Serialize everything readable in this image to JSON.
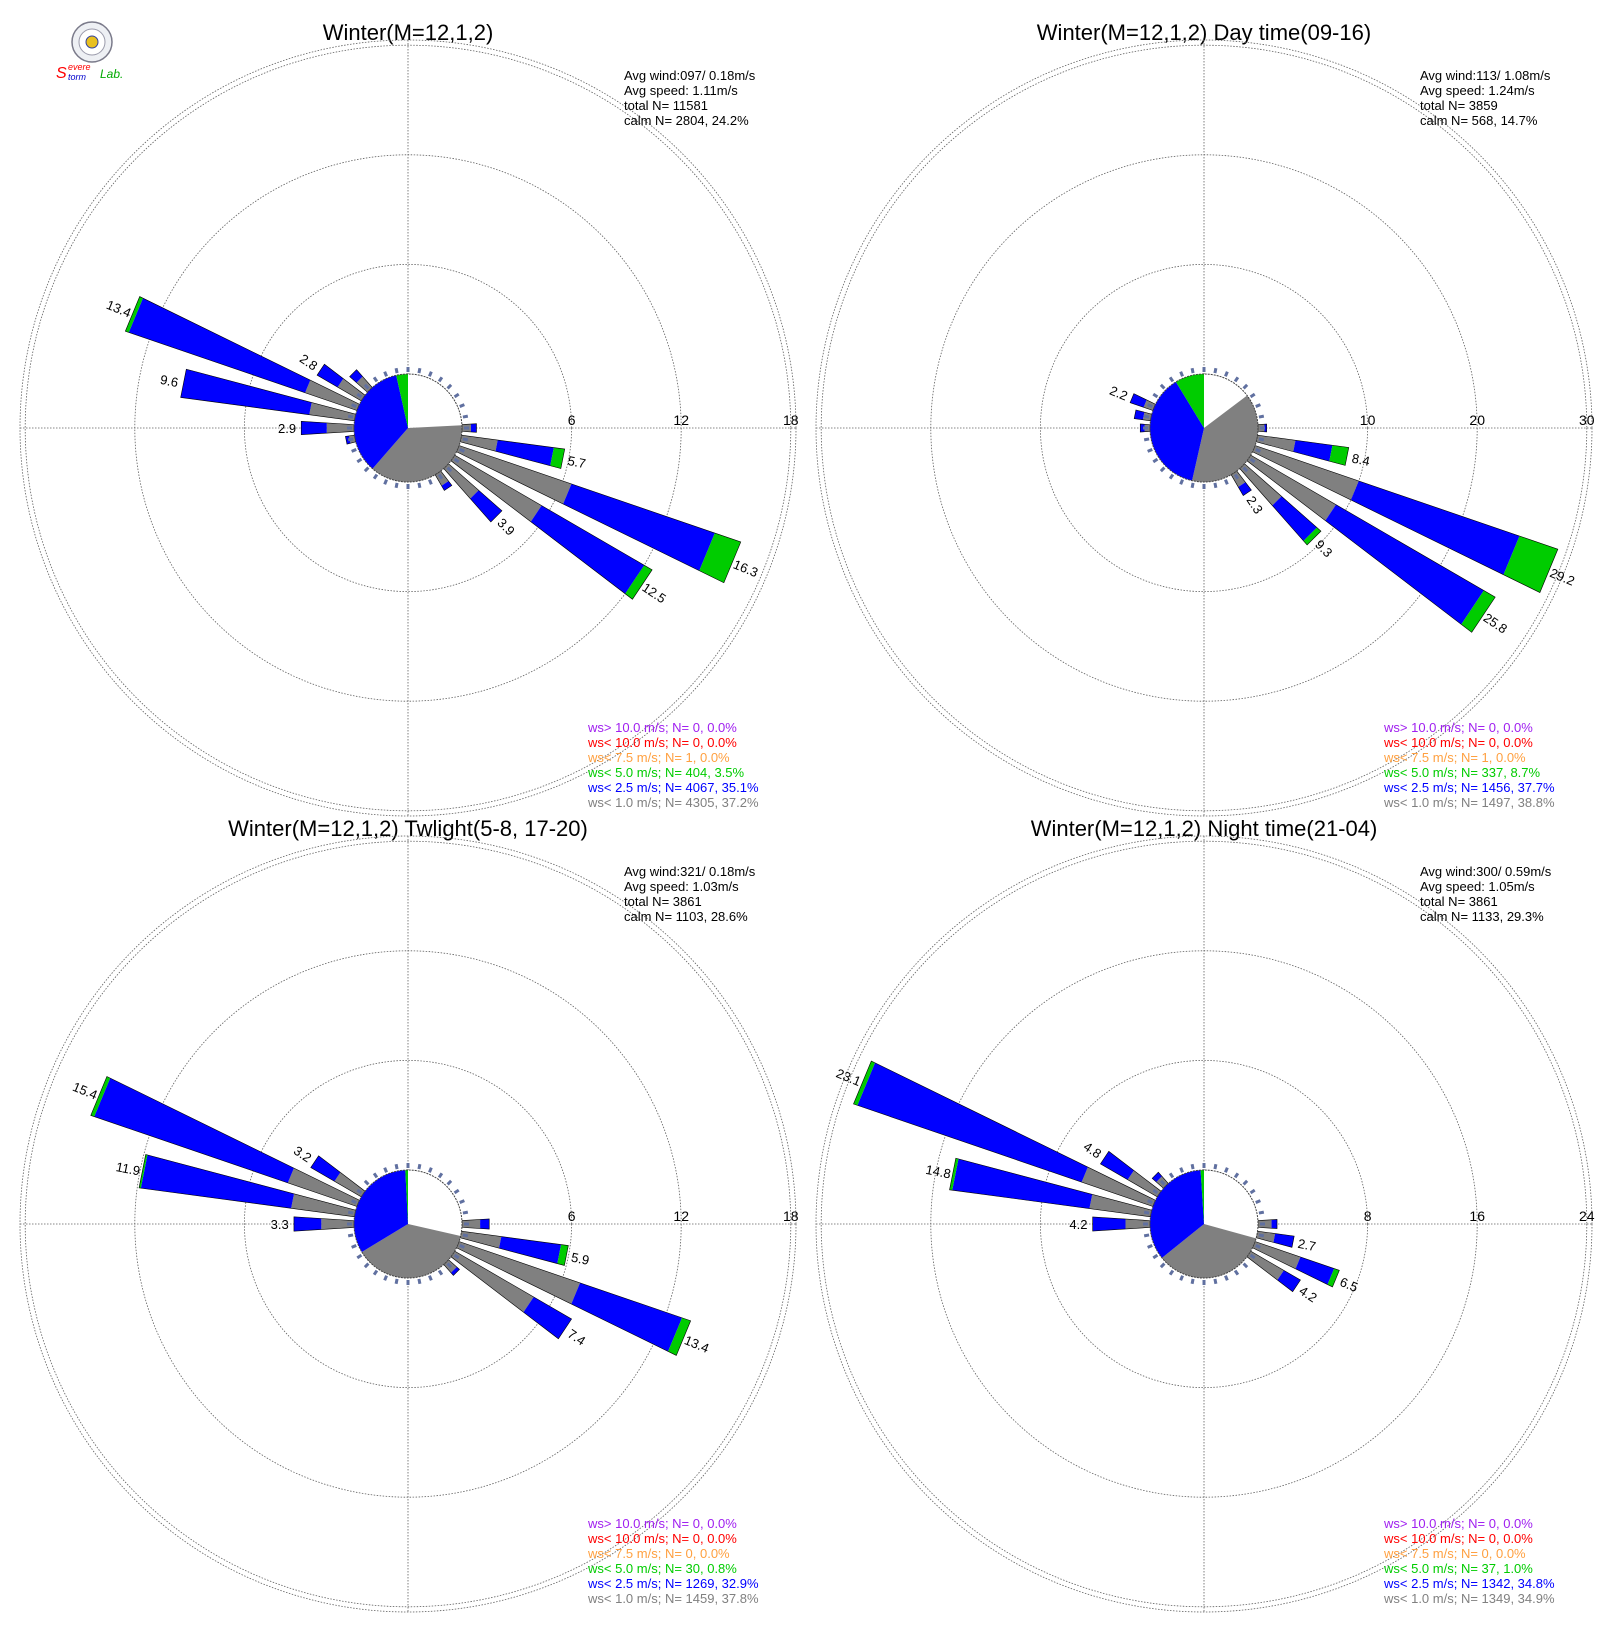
{
  "logo": {
    "text_s": "S",
    "text_evere": "evere",
    "text_torm": "torm",
    "text_lab": "Lab."
  },
  "colors": {
    "ws_gt10": "#a020f0",
    "ws_lt10": "#ff0000",
    "ws_lt75": "#ffa040",
    "ws_lt5": "#00cc00",
    "ws_lt25": "#0000ff",
    "ws_lt1": "#808080",
    "grid": "#606060",
    "calm_fill": "#808080"
  },
  "legend_labels": [
    "ws> 10.0 m/s; N=",
    "ws< 10.0 m/s; N=",
    "ws< 7.5 m/s; N=",
    "ws< 5.0 m/s; N=",
    "ws< 2.5 m/s; N=",
    "ws< 1.0 m/s; N="
  ],
  "chart_data": [
    {
      "type": "windrose",
      "title": "Winter(M=12,1,2)",
      "rings": [
        6,
        12,
        18
      ],
      "ring_labels": [
        "6",
        "12",
        "18"
      ],
      "stats": [
        "Avg wind:097/ 0.18m/s",
        "Avg speed: 1.11m/s",
        "total N=       11581",
        "calm N=   2804,  24.2%"
      ],
      "legend_values": [
        "  0,  0.0%",
        "  0,  0.0%",
        "  1,  0.0%",
        " 404,  3.5%",
        "4067, 35.1%",
        "4305, 37.2%"
      ],
      "pie": [
        24.2,
        37.2,
        35.1,
        3.5
      ],
      "bars": [
        {
          "dir": 292.5,
          "gray": 3.0,
          "blue": 10.2,
          "green": 0.2,
          "label": "13.4"
        },
        {
          "dir": 281.25,
          "gray": 2.5,
          "blue": 7.1,
          "green": 0,
          "label": "9.6"
        },
        {
          "dir": 303.75,
          "gray": 1.5,
          "blue": 1.3,
          "green": 0,
          "label": "2.8"
        },
        {
          "dir": 270,
          "gray": 1.5,
          "blue": 1.4,
          "green": 0,
          "label": "2.9"
        },
        {
          "dir": 101.25,
          "gray": 2.0,
          "blue": 3.1,
          "green": 0.6,
          "label": "5.7"
        },
        {
          "dir": 112.5,
          "gray": 6.5,
          "blue": 8.3,
          "green": 1.5,
          "label": "16.3"
        },
        {
          "dir": 123.75,
          "gray": 5.5,
          "blue": 6.5,
          "green": 0.5,
          "label": "12.5"
        },
        {
          "dir": 135,
          "gray": 2.2,
          "blue": 1.7,
          "green": 0,
          "label": "3.9"
        },
        {
          "dir": 315,
          "gray": 0.8,
          "blue": 0.5,
          "green": 0,
          "label": ""
        },
        {
          "dir": 146.25,
          "gray": 0.7,
          "blue": 0.3,
          "green": 0,
          "label": ""
        },
        {
          "dir": 90,
          "gray": 0.5,
          "blue": 0.3,
          "green": 0,
          "label": ""
        },
        {
          "dir": 258.75,
          "gray": 0.3,
          "blue": 0.2,
          "green": 0,
          "label": ""
        }
      ]
    },
    {
      "type": "windrose",
      "title": "Winter(M=12,1,2) Day time(09-16)",
      "rings": [
        10,
        20,
        30
      ],
      "ring_labels": [
        "10",
        "20",
        "30"
      ],
      "stats": [
        "Avg wind:113/ 1.08m/s",
        "Avg speed: 1.24m/s",
        "total N=        3859",
        "calm N=    568,  14.7%"
      ],
      "legend_values": [
        "  0,  0.0%",
        "  0,  0.0%",
        "  1,  0.0%",
        " 337,  8.7%",
        "1456, 37.7%",
        "1497, 38.8%"
      ],
      "pie": [
        14.7,
        38.8,
        37.7,
        8.7
      ],
      "bars": [
        {
          "dir": 101.25,
          "gray": 3.5,
          "blue": 3.4,
          "green": 1.5,
          "label": "8.4"
        },
        {
          "dir": 112.5,
          "gray": 10.0,
          "blue": 15.5,
          "green": 3.7,
          "label": "29.2"
        },
        {
          "dir": 123.75,
          "gray": 9.0,
          "blue": 15.6,
          "green": 1.2,
          "label": "25.8"
        },
        {
          "dir": 135,
          "gray": 4.5,
          "blue": 4.3,
          "green": 0.5,
          "label": "9.3"
        },
        {
          "dir": 146.25,
          "gray": 1.3,
          "blue": 0.9,
          "green": 0,
          "label": "2.3"
        },
        {
          "dir": 292.5,
          "gray": 0.9,
          "blue": 1.3,
          "green": 0,
          "label": "2.2"
        },
        {
          "dir": 281.25,
          "gray": 0.7,
          "blue": 0.8,
          "green": 0,
          "label": ""
        },
        {
          "dir": 270,
          "gray": 0.5,
          "blue": 0.4,
          "green": 0,
          "label": ""
        },
        {
          "dir": 90,
          "gray": 0.6,
          "blue": 0.2,
          "green": 0,
          "label": ""
        }
      ]
    },
    {
      "type": "windrose",
      "title": "Winter(M=12,1,2) Twlight(5-8, 17-20)",
      "rings": [
        6,
        12,
        18
      ],
      "ring_labels": [
        "6",
        "12",
        "18"
      ],
      "stats": [
        "Avg wind:321/ 0.18m/s",
        "Avg speed: 1.03m/s",
        "total N=        3861",
        "calm N=   1103,  28.6%"
      ],
      "legend_values": [
        "  0,  0.0%",
        "  0,  0.0%",
        "  0,  0.0%",
        "  30,  0.8%",
        "1269, 32.9%",
        "1459, 37.8%"
      ],
      "pie": [
        28.6,
        37.8,
        32.9,
        0.8
      ],
      "bars": [
        {
          "dir": 292.5,
          "gray": 4.0,
          "blue": 11.2,
          "green": 0.2,
          "label": "15.4"
        },
        {
          "dir": 281.25,
          "gray": 3.5,
          "blue": 8.3,
          "green": 0.1,
          "label": "11.9"
        },
        {
          "dir": 303.75,
          "gray": 1.7,
          "blue": 1.5,
          "green": 0,
          "label": "3.2"
        },
        {
          "dir": 270,
          "gray": 1.8,
          "blue": 1.5,
          "green": 0,
          "label": "3.3"
        },
        {
          "dir": 101.25,
          "gray": 2.2,
          "blue": 3.3,
          "green": 0.4,
          "label": "5.9"
        },
        {
          "dir": 112.5,
          "gray": 7.0,
          "blue": 5.9,
          "green": 0.5,
          "label": "13.4"
        },
        {
          "dir": 123.75,
          "gray": 5.0,
          "blue": 2.4,
          "green": 0,
          "label": "7.4"
        },
        {
          "dir": 90,
          "gray": 1.0,
          "blue": 0.5,
          "green": 0,
          "label": ""
        },
        {
          "dir": 135,
          "gray": 0.6,
          "blue": 0.2,
          "green": 0,
          "label": ""
        }
      ]
    },
    {
      "type": "windrose",
      "title": "Winter(M=12,1,2) Night time(21-04)",
      "rings": [
        8,
        16,
        24
      ],
      "ring_labels": [
        "8",
        "16",
        "24"
      ],
      "stats": [
        "Avg wind:300/ 0.59m/s",
        "Avg speed: 1.05m/s",
        "total N=        3861",
        "calm N=   1133,  29.3%"
      ],
      "legend_values": [
        "  0,  0.0%",
        "  0,  0.0%",
        "  0,  0.0%",
        "  37,  1.0%",
        "1342, 34.8%",
        "1349, 34.9%"
      ],
      "pie": [
        29.3,
        34.9,
        34.8,
        1.0
      ],
      "bars": [
        {
          "dir": 292.5,
          "gray": 5.5,
          "blue": 17.3,
          "green": 0.3,
          "label": "23.1"
        },
        {
          "dir": 281.25,
          "gray": 4.5,
          "blue": 10.1,
          "green": 0.2,
          "label": "14.8"
        },
        {
          "dir": 303.75,
          "gray": 2.5,
          "blue": 2.3,
          "green": 0,
          "label": "4.8"
        },
        {
          "dir": 270,
          "gray": 1.8,
          "blue": 2.4,
          "green": 0,
          "label": "4.2"
        },
        {
          "dir": 101.25,
          "gray": 1.3,
          "blue": 1.4,
          "green": 0,
          "label": "2.7"
        },
        {
          "dir": 112.5,
          "gray": 3.5,
          "blue": 2.6,
          "green": 0.4,
          "label": "6.5"
        },
        {
          "dir": 123.75,
          "gray": 2.8,
          "blue": 1.4,
          "green": 0,
          "label": "4.2"
        },
        {
          "dir": 90,
          "gray": 1.0,
          "blue": 0.4,
          "green": 0,
          "label": ""
        },
        {
          "dir": 315,
          "gray": 0.7,
          "blue": 0.4,
          "green": 0,
          "label": ""
        }
      ]
    }
  ]
}
